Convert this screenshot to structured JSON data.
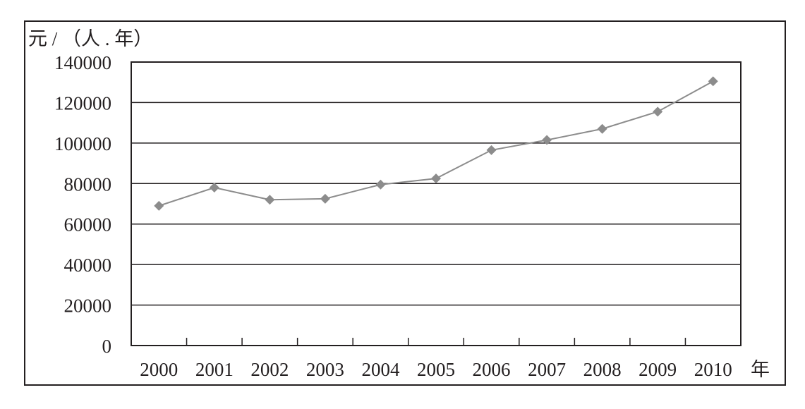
{
  "chart_data": {
    "type": "line",
    "title": "",
    "ylabel": "元 / （人 . 年）",
    "xlabel": "年",
    "categories": [
      "2000",
      "2001",
      "2002",
      "2003",
      "2004",
      "2005",
      "2006",
      "2007",
      "2008",
      "2009",
      "2010"
    ],
    "series": [
      {
        "values": [
          69000,
          78000,
          72000,
          72500,
          79500,
          82500,
          96500,
          101500,
          107000,
          115500,
          130500
        ]
      }
    ],
    "ylim": [
      0,
      140000
    ],
    "yticks": [
      "0",
      "20000",
      "40000",
      "60000",
      "80000",
      "100000",
      "120000",
      "140000"
    ],
    "grid": true,
    "legend": "none",
    "colors": {
      "line": "#8c8c8c",
      "marker": "#8c8c8c",
      "axis": "#231f20",
      "grid": "#231f20"
    }
  }
}
